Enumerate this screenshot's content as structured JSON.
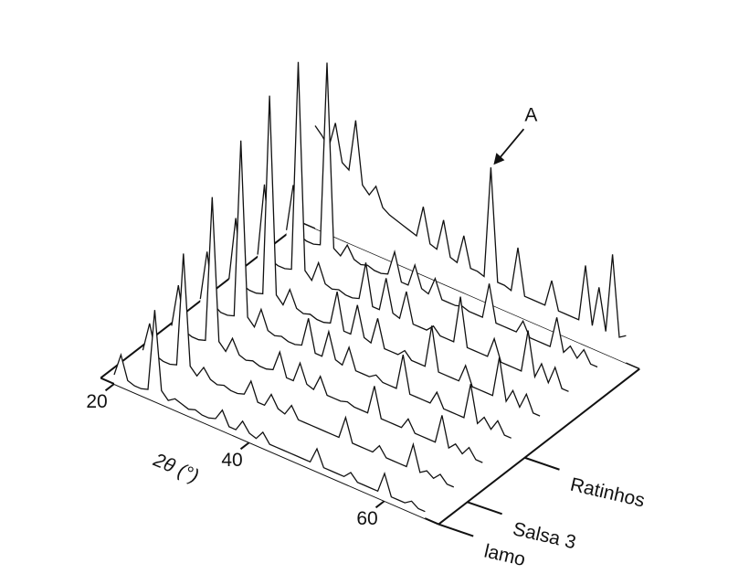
{
  "chart_data": {
    "type": "waterfall",
    "xlabel": "2θ (°)",
    "xlim": [
      18,
      68
    ],
    "xticks": [
      20,
      40,
      60
    ],
    "x": [
      20,
      21,
      22,
      23,
      24,
      25,
      26,
      27,
      28,
      29,
      30,
      31,
      32,
      33,
      34,
      35,
      36,
      37,
      38,
      39,
      40,
      41,
      42,
      43,
      44,
      45,
      46,
      47,
      48,
      49,
      50,
      51,
      52,
      53,
      54,
      55,
      56,
      57,
      58,
      59,
      60,
      61,
      62,
      63,
      64,
      65,
      66
    ],
    "ylim": [
      0,
      100
    ],
    "zlim": [
      0,
      7
    ],
    "zticks": [
      {
        "value": 0,
        "label": "lamo"
      },
      {
        "value": 1,
        "label": "Salsa 3"
      },
      {
        "value": 3,
        "label": "Ratinhos"
      }
    ],
    "color": "#111111",
    "series": [
      {
        "z": 0,
        "values": [
          4,
          14,
          4,
          3,
          3,
          4,
          40,
          6,
          3,
          5,
          4,
          3,
          4,
          3,
          3,
          4,
          9,
          3,
          3,
          8,
          4,
          3,
          7,
          3,
          3,
          3,
          3,
          3,
          3,
          3,
          10,
          3,
          3,
          3,
          3,
          6,
          3,
          3,
          3,
          3,
          12,
          3,
          3,
          3,
          5,
          3,
          3
        ]
      },
      {
        "z": 1,
        "values": [
          5,
          18,
          5,
          4,
          4,
          5,
          55,
          7,
          4,
          9,
          5,
          4,
          5,
          4,
          4,
          5,
          12,
          4,
          4,
          10,
          5,
          4,
          9,
          4,
          4,
          4,
          4,
          4,
          4,
          4,
          14,
          4,
          4,
          4,
          4,
          8,
          4,
          4,
          4,
          4,
          15,
          4,
          6,
          4,
          7,
          4,
          4
        ]
      },
      {
        "z": 2,
        "values": [
          6,
          25,
          6,
          5,
          5,
          6,
          70,
          8,
          5,
          12,
          6,
          5,
          6,
          5,
          5,
          6,
          15,
          5,
          5,
          14,
          6,
          5,
          12,
          5,
          5,
          5,
          6,
          5,
          5,
          5,
          18,
          5,
          5,
          5,
          5,
          10,
          5,
          5,
          5,
          5,
          18,
          5,
          8,
          5,
          9,
          5,
          5
        ]
      },
      {
        "z": 3,
        "values": [
          8,
          30,
          8,
          6,
          6,
          7,
          85,
          9,
          6,
          15,
          7,
          6,
          7,
          6,
          6,
          7,
          20,
          6,
          6,
          18,
          7,
          6,
          15,
          6,
          6,
          6,
          8,
          6,
          6,
          6,
          22,
          6,
          6,
          6,
          6,
          12,
          6,
          6,
          6,
          6,
          22,
          6,
          10,
          6,
          11,
          6,
          6
        ]
      },
      {
        "z": 4,
        "values": [
          7,
          35,
          7,
          6,
          6,
          7,
          95,
          9,
          6,
          14,
          7,
          6,
          7,
          6,
          6,
          7,
          22,
          6,
          6,
          20,
          7,
          6,
          18,
          6,
          6,
          6,
          9,
          6,
          6,
          6,
          25,
          6,
          6,
          6,
          6,
          14,
          6,
          6,
          6,
          6,
          24,
          6,
          12,
          6,
          13,
          6,
          6
        ]
      },
      {
        "z": 5,
        "values": [
          8,
          40,
          8,
          7,
          7,
          8,
          100,
          10,
          7,
          16,
          8,
          7,
          8,
          7,
          7,
          8,
          25,
          7,
          7,
          22,
          8,
          7,
          20,
          7,
          7,
          7,
          10,
          7,
          7,
          7,
          28,
          7,
          7,
          7,
          7,
          16,
          7,
          7,
          7,
          7,
          26,
          7,
          14,
          7,
          15,
          7,
          7
        ]
      },
      {
        "z": 6,
        "values": [
          9,
          30,
          9,
          8,
          8,
          9,
          90,
          10,
          8,
          14,
          9,
          8,
          9,
          8,
          8,
          9,
          20,
          8,
          8,
          18,
          9,
          8,
          16,
          8,
          8,
          8,
          9,
          8,
          8,
          8,
          24,
          8,
          8,
          8,
          8,
          14,
          8,
          8,
          8,
          8,
          22,
          8,
          12,
          8,
          13,
          8,
          8
        ]
      },
      {
        "z": 7,
        "values": [
          45,
          42,
          38,
          50,
          34,
          32,
          55,
          28,
          25,
          30,
          22,
          20,
          19,
          18,
          17,
          16,
          30,
          15,
          14,
          28,
          13,
          12,
          25,
          12,
          12,
          11,
          60,
          11,
          11,
          10,
          30,
          10,
          10,
          10,
          10,
          22,
          10,
          10,
          10,
          10,
          35,
          10,
          28,
          10,
          45,
          10,
          12
        ]
      }
    ],
    "annotation": {
      "text": "A",
      "series": 7,
      "x": 46
    }
  }
}
